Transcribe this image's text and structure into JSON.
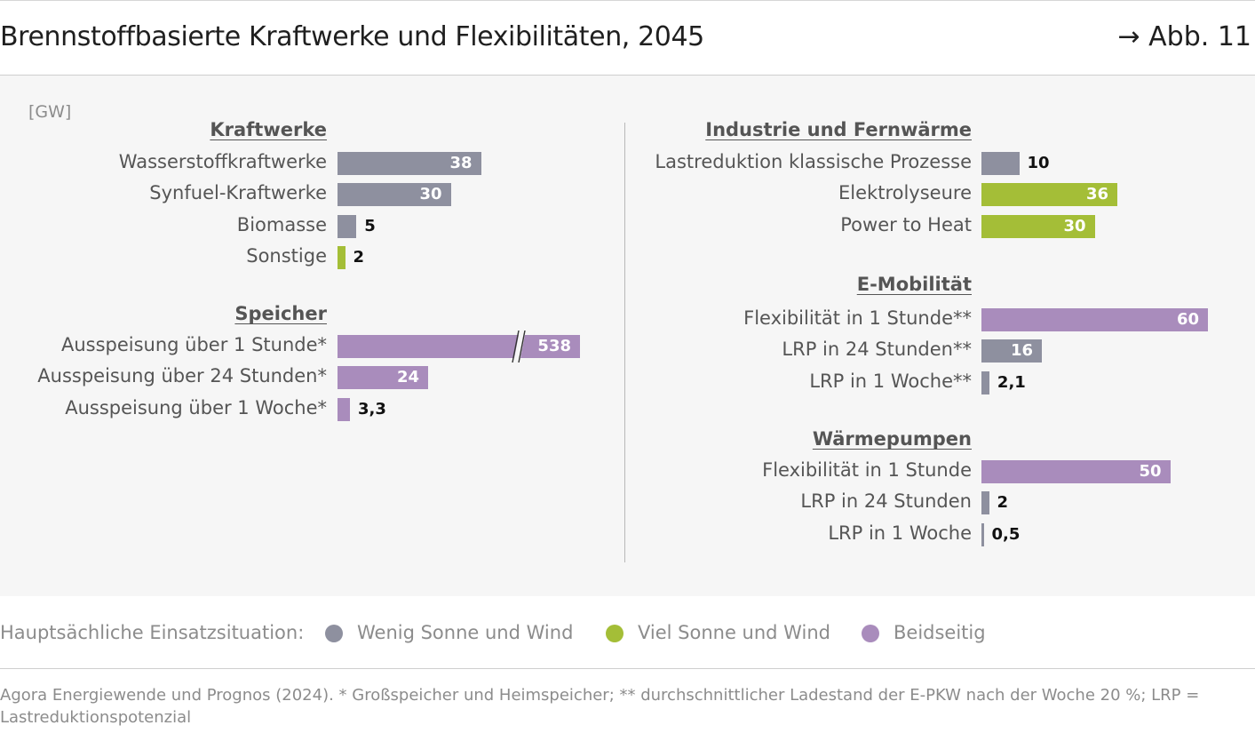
{
  "header": {
    "title": "Brennstoffbasierte Kraftwerke und Flexibilitäten, 2045",
    "figure_ref": "→ Abb. 11"
  },
  "chart_data": {
    "type": "bar",
    "orientation": "horizontal",
    "unit_label": "[GW]",
    "colors": {
      "Wenig Sonne und Wind": "#8e909f",
      "Viel Sonne und Wind": "#a4be37",
      "Beidseitig": "#a98cbc"
    },
    "groups": [
      {
        "name": "Kraftwerke",
        "items": [
          {
            "label": "Wasserstoffkraftwerke",
            "value": 38,
            "display": "38",
            "situation": "Wenig Sonne und Wind"
          },
          {
            "label": "Synfuel-Kraftwerke",
            "value": 30,
            "display": "30",
            "situation": "Wenig Sonne und Wind"
          },
          {
            "label": "Biomasse",
            "value": 5,
            "display": "5",
            "situation": "Wenig Sonne und Wind"
          },
          {
            "label": "Sonstige",
            "value": 2,
            "display": "2",
            "situation": "Viel Sonne und Wind"
          }
        ]
      },
      {
        "name": "Speicher",
        "items": [
          {
            "label": "Ausspeisung über 1 Stunde*",
            "value": 538,
            "display": "538",
            "situation": "Beidseitig",
            "axis_break": true
          },
          {
            "label": "Ausspeisung über 24 Stunden*",
            "value": 24,
            "display": "24",
            "situation": "Beidseitig"
          },
          {
            "label": "Ausspeisung über 1 Woche*",
            "value": 3.3,
            "display": "3,3",
            "situation": "Beidseitig"
          }
        ]
      },
      {
        "name": "Industrie und Fernwärme",
        "items": [
          {
            "label": "Lastreduktion klassische Prozesse",
            "value": 10,
            "display": "10",
            "situation": "Wenig Sonne und Wind"
          },
          {
            "label": "Elektrolyseure",
            "value": 36,
            "display": "36",
            "situation": "Viel Sonne und Wind"
          },
          {
            "label": "Power to Heat",
            "value": 30,
            "display": "30",
            "situation": "Viel Sonne und Wind"
          }
        ]
      },
      {
        "name": "E-Mobilität",
        "items": [
          {
            "label": "Flexibilität in 1 Stunde**",
            "value": 60,
            "display": "60",
            "situation": "Beidseitig"
          },
          {
            "label": "LRP in 24 Stunden**",
            "value": 16,
            "display": "16",
            "situation": "Wenig Sonne und Wind"
          },
          {
            "label": "LRP in 1 Woche**",
            "value": 2.1,
            "display": "2,1",
            "situation": "Wenig Sonne und Wind"
          }
        ]
      },
      {
        "name": "Wärmepumpen",
        "items": [
          {
            "label": "Flexibilität in 1 Stunde",
            "value": 50,
            "display": "50",
            "situation": "Beidseitig"
          },
          {
            "label": "LRP in 24 Stunden",
            "value": 2,
            "display": "2",
            "situation": "Wenig Sonne und Wind"
          },
          {
            "label": "LRP in 1 Woche",
            "value": 0.5,
            "display": "0,5",
            "situation": "Wenig Sonne und Wind"
          }
        ]
      }
    ]
  },
  "legend": {
    "lead": "Hauptsächliche Einsatzsituation:",
    "items": [
      {
        "label": "Wenig Sonne und Wind",
        "color": "#8e909f"
      },
      {
        "label": "Viel Sonne und Wind",
        "color": "#a4be37"
      },
      {
        "label": "Beidseitig",
        "color": "#a98cbc"
      }
    ]
  },
  "footnote": "Agora Energiewende und Prognos  (2024). * Großspeicher und Heimspeicher; ** durchschnittlicher Ladestand der E-PKW nach der Woche 20 %; LRP = Lastreduktionspotenzial"
}
